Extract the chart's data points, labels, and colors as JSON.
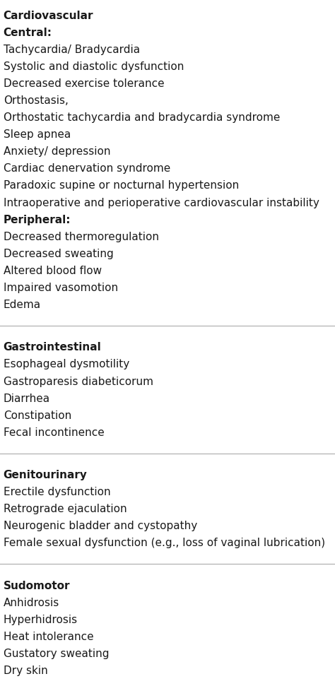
{
  "sections": [
    {
      "header": "Cardiovascular",
      "subsections": [
        {
          "subheader": "Central:",
          "items": [
            "Tachycardia/ Bradycardia",
            "Systolic and diastolic dysfunction",
            "Decreased exercise tolerance",
            "Orthostasis,",
            "Orthostatic tachycardia and bradycardia syndrome",
            "Sleep apnea",
            "Anxiety/ depression",
            "Cardiac denervation syndrome",
            "Paradoxic supine or nocturnal hypertension",
            "Intraoperative and perioperative cardiovascular instability"
          ]
        },
        {
          "subheader": "Peripheral:",
          "items": [
            "Decreased thermoregulation",
            "Decreased sweating",
            "Altered blood flow",
            "Impaired vasomotion",
            "Edema"
          ]
        }
      ]
    },
    {
      "header": "Gastrointestinal",
      "subsections": [
        {
          "subheader": null,
          "items": [
            "Esophageal dysmotility",
            "Gastroparesis diabeticorum",
            "Diarrhea",
            "Constipation",
            "Fecal incontinence"
          ]
        }
      ]
    },
    {
      "header": "Genitourinary",
      "subsections": [
        {
          "subheader": null,
          "items": [
            "Erectile dysfunction",
            "Retrograde ejaculation",
            "Neurogenic bladder and cystopathy",
            "Female sexual dysfunction (e.g., loss of vaginal lubrication)"
          ]
        }
      ]
    },
    {
      "header": "Sudomotor",
      "subsections": [
        {
          "subheader": null,
          "items": [
            "Anhidrosis",
            "Hyperhidrosis",
            "Heat intolerance",
            "Gustatory sweating",
            "Dry skin"
          ]
        }
      ]
    }
  ],
  "bg_color": "#ffffff",
  "text_color": "#1a1a1a",
  "header_fontsize": 11,
  "item_fontsize": 11,
  "line_color": "#aaaaaa",
  "fig_width": 4.74,
  "fig_height": 9.71,
  "dpi": 100
}
